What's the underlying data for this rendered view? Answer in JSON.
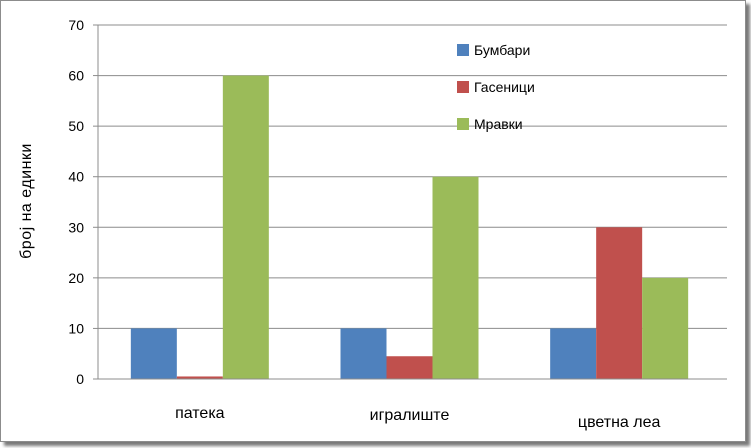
{
  "chart_data": {
    "type": "bar",
    "title": "",
    "xlabel": "",
    "ylabel": "број на единки",
    "categories": [
      "патека",
      "игралиште",
      "цветна леа"
    ],
    "series": [
      {
        "name": "Бумбари",
        "color": "#4f81bd",
        "values": [
          10,
          10,
          10
        ]
      },
      {
        "name": "Гасеници",
        "color": "#c0504d",
        "values": [
          0.5,
          4.5,
          30
        ]
      },
      {
        "name": "Мравки",
        "color": "#9bbb59",
        "values": [
          60,
          40,
          20
        ]
      }
    ],
    "ylim": [
      0,
      70
    ],
    "yticks": [
      0,
      10,
      20,
      30,
      40,
      50,
      60,
      70
    ],
    "grid": true,
    "legend_position": "top-right"
  }
}
